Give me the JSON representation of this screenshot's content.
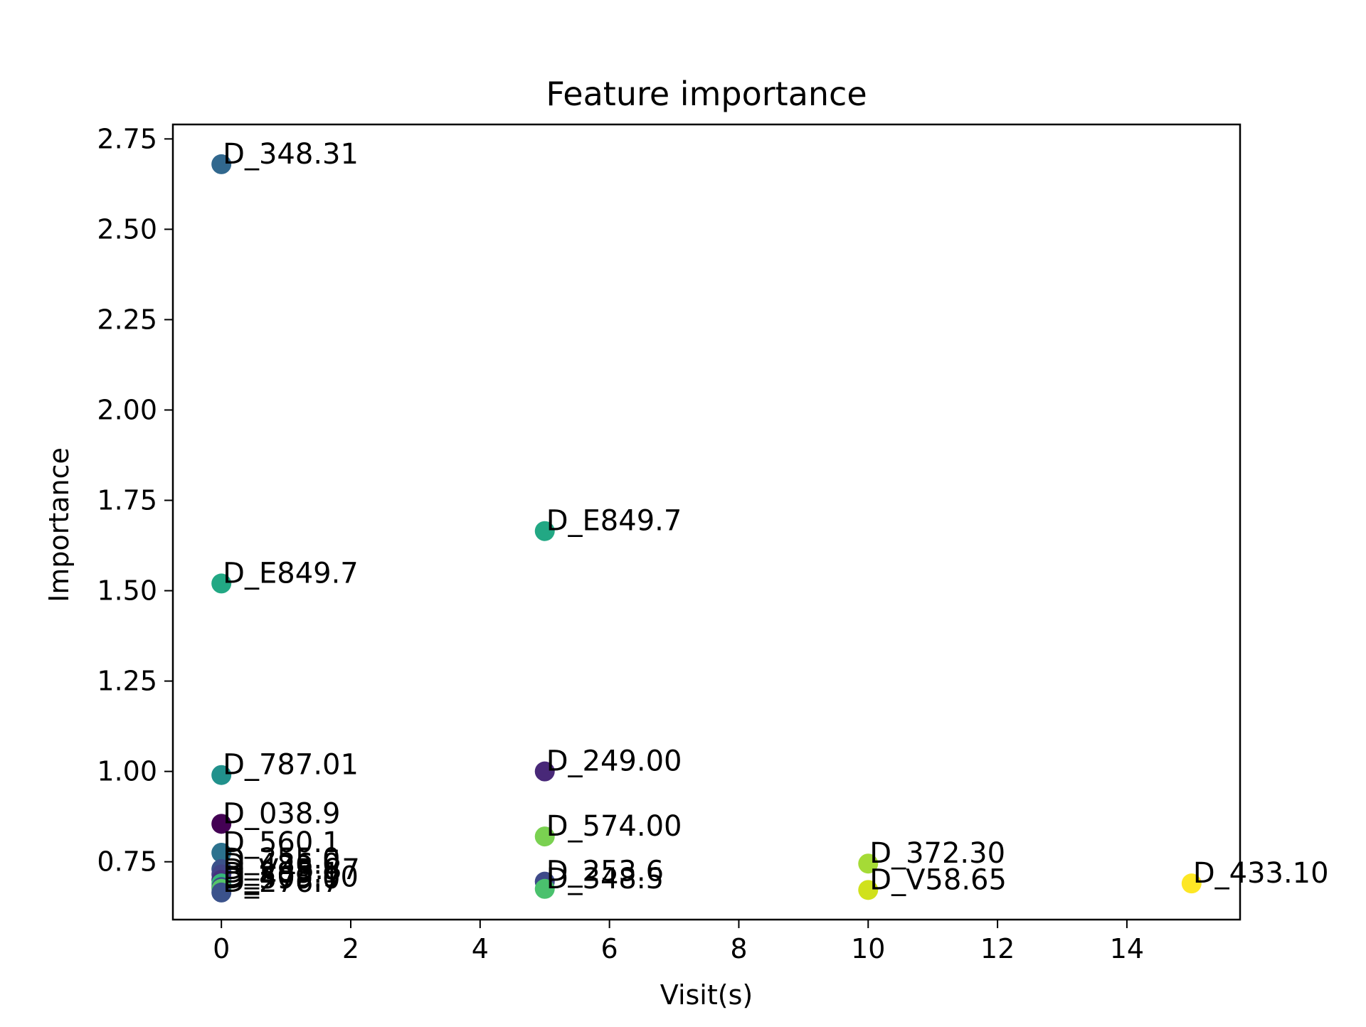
{
  "chart_data": {
    "type": "scatter",
    "title": "Feature importance",
    "xlabel": "Visit(s)",
    "ylabel": "Importance",
    "xlim": [
      -0.75,
      15.75
    ],
    "ylim": [
      0.59,
      2.79
    ],
    "xticks": [
      "0",
      "2",
      "4",
      "6",
      "8",
      "10",
      "12",
      "14"
    ],
    "yticks": [
      "0.75",
      "1.00",
      "1.25",
      "1.50",
      "1.75",
      "2.00",
      "2.25",
      "2.50",
      "2.75"
    ],
    "grid": false,
    "points": [
      {
        "x": 0,
        "y": 2.68,
        "label": "D_348.31",
        "color": "#31688e"
      },
      {
        "x": 0,
        "y": 1.52,
        "label": "D_E849.7",
        "color": "#22a884"
      },
      {
        "x": 0,
        "y": 0.99,
        "label": "D_787.01",
        "color": "#21918c"
      },
      {
        "x": 0,
        "y": 0.855,
        "label": "D_038.9",
        "color": "#440154"
      },
      {
        "x": 0,
        "y": 0.775,
        "label": "D_560.1",
        "color": "#2c728e"
      },
      {
        "x": 0,
        "y": 0.73,
        "label": "D_255.0",
        "color": "#3b528b"
      },
      {
        "x": 0,
        "y": 0.715,
        "label": "D_486.0",
        "color": "#414487"
      },
      {
        "x": 0,
        "y": 0.7,
        "label": "D_V45.87",
        "color": "#46337e"
      },
      {
        "x": 0,
        "y": 0.69,
        "label": "D_285.1",
        "color": "#35b779"
      },
      {
        "x": 0,
        "y": 0.68,
        "label": "D_403.90",
        "color": "#3e4a89"
      },
      {
        "x": 0,
        "y": 0.675,
        "label": "D_599.0",
        "color": "#54c568"
      },
      {
        "x": 0,
        "y": 0.665,
        "label": "D_276.7",
        "color": "#3b528b"
      },
      {
        "x": 5,
        "y": 1.665,
        "label": "D_E849.7",
        "color": "#22a884"
      },
      {
        "x": 5,
        "y": 1.0,
        "label": "D_249.00",
        "color": "#482878"
      },
      {
        "x": 5,
        "y": 0.82,
        "label": "D_574.00",
        "color": "#7ad151"
      },
      {
        "x": 5,
        "y": 0.695,
        "label": "D_253.6",
        "color": "#3e4a89"
      },
      {
        "x": 5,
        "y": 0.675,
        "label": "D_348.5",
        "color": "#4ac16d"
      },
      {
        "x": 10,
        "y": 0.745,
        "label": "D_372.30",
        "color": "#a5db36"
      },
      {
        "x": 10,
        "y": 0.672,
        "label": "D_V58.65",
        "color": "#d0e11c"
      },
      {
        "x": 15,
        "y": 0.69,
        "label": "D_433.10",
        "color": "#fde725"
      }
    ]
  }
}
